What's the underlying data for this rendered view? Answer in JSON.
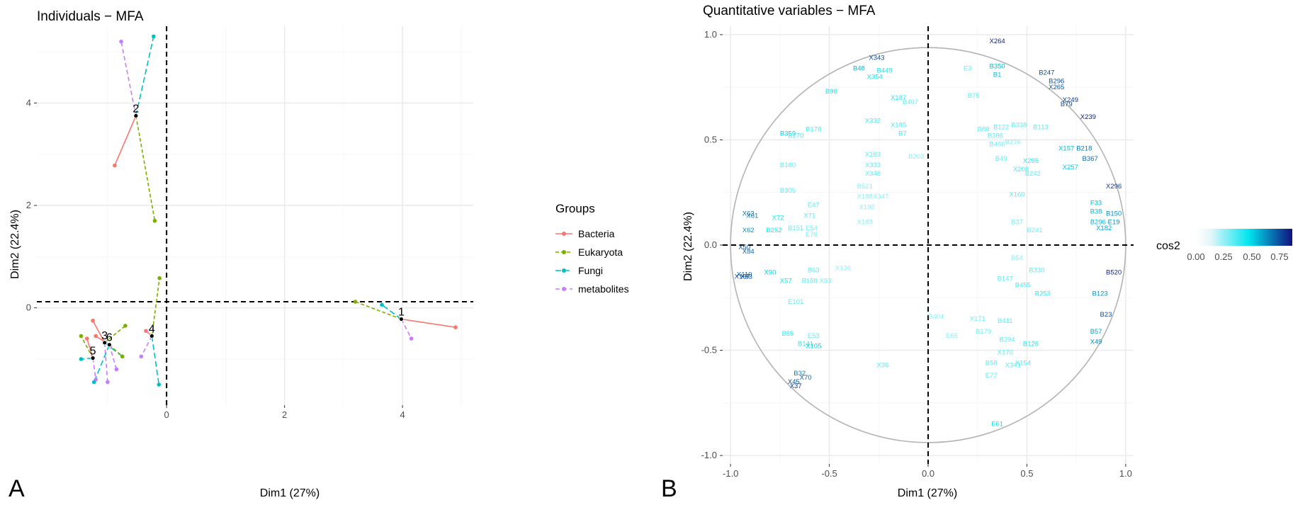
{
  "panel_a": {
    "letter": "A",
    "title": "Individuals − MFA",
    "xlabel": "Dim1 (27%)",
    "ylabel": "Dim2 (22.4%)",
    "legend_title": "Groups"
  },
  "panel_b": {
    "letter": "B",
    "title": "Quantitative variables − MFA",
    "xlabel": "Dim1 (27%)",
    "ylabel": "Dim2 (22.4%)",
    "colorbar_title": "cos2",
    "colorbar_ticks": [
      "0.00",
      "0.25",
      "0.50",
      "0.75"
    ]
  },
  "colors": {
    "Bacteria": "#f8766d",
    "Eukaryota": "#7cae00",
    "Fungi": "#00bfc4",
    "metabolites": "#c77cff",
    "cos2_low": "#e6f6fa",
    "cos2_mid": "#00e5ee",
    "cos2_high": "#10107f"
  },
  "chart_data": [
    {
      "type": "scatter",
      "subtype": "partial-individuals",
      "title": "Individuals − MFA",
      "xlabel": "Dim1 (27%)",
      "ylabel": "Dim2 (22.4%)",
      "xlim": [
        -2.2,
        5.2
      ],
      "ylim": [
        -1.9,
        5.5
      ],
      "xticks": [
        0,
        2,
        4
      ],
      "yticks": [
        0,
        2,
        4
      ],
      "grid": true,
      "legend_position": "right",
      "reference_lines": {
        "x": 0,
        "y": 0.12
      },
      "groups": [
        "Bacteria",
        "Eukaryota",
        "Fungi",
        "metabolites"
      ],
      "individuals": [
        {
          "label": "1",
          "x": 3.98,
          "y": -0.22,
          "partial": {
            "Bacteria": [
              4.9,
              -0.38
            ],
            "Eukaryota": [
              3.2,
              0.12
            ],
            "Fungi": [
              3.65,
              0.06
            ],
            "metabolites": [
              4.15,
              -0.6
            ]
          }
        },
        {
          "label": "2",
          "x": -0.52,
          "y": 3.75,
          "partial": {
            "Bacteria": [
              -0.88,
              2.78
            ],
            "Eukaryota": [
              -0.2,
              1.7
            ],
            "Fungi": [
              -0.22,
              5.3
            ],
            "metabolites": [
              -0.77,
              5.2
            ]
          }
        },
        {
          "label": "3",
          "x": -1.05,
          "y": -0.68,
          "partial": {
            "Bacteria": [
              -1.25,
              -0.25
            ],
            "Eukaryota": [
              -0.7,
              -0.35
            ],
            "Fungi": [
              -0.75,
              -0.95
            ],
            "metabolites": [
              -1.0,
              -1.45
            ]
          }
        },
        {
          "label": "4",
          "x": -0.25,
          "y": -0.55,
          "partial": {
            "Bacteria": [
              -0.35,
              -0.45
            ],
            "Eukaryota": [
              -0.12,
              0.58
            ],
            "Fungi": [
              -0.13,
              -1.5
            ],
            "metabolites": [
              -0.43,
              -0.95
            ]
          }
        },
        {
          "label": "5",
          "x": -1.25,
          "y": -0.98,
          "partial": {
            "Bacteria": [
              -1.35,
              -0.6
            ],
            "Eukaryota": [
              -1.45,
              -0.55
            ],
            "Fungi": [
              -1.45,
              -1.0
            ],
            "metabolites": [
              -1.2,
              -1.4
            ]
          }
        },
        {
          "label": "6",
          "x": -0.97,
          "y": -0.72,
          "partial": {
            "Bacteria": [
              -1.2,
              -0.55
            ],
            "Eukaryota": [
              -0.75,
              -0.95
            ],
            "Fungi": [
              -1.23,
              -1.45
            ],
            "metabolites": [
              -0.85,
              -1.2
            ]
          }
        }
      ]
    },
    {
      "type": "scatter",
      "subtype": "correlation-circle",
      "title": "Quantitative variables − MFA",
      "xlabel": "Dim1 (27%)",
      "ylabel": "Dim2 (22.4%)",
      "xlim": [
        -1.04,
        1.04
      ],
      "ylim": [
        -1.04,
        1.04
      ],
      "xticks": [
        -1.0,
        -0.5,
        0.0,
        0.5,
        1.0
      ],
      "yticks": [
        -1.0,
        -0.5,
        0.0,
        0.5,
        1.0
      ],
      "grid": true,
      "legend_position": "right",
      "color_by": "cos2",
      "colorbar_ticks": [
        0.0,
        0.25,
        0.5,
        0.75
      ],
      "variables": [
        {
          "label": "X264",
          "x": 0.35,
          "y": 0.97,
          "cos2": 0.95
        },
        {
          "label": "X343",
          "x": -0.26,
          "y": 0.89,
          "cos2": 0.85
        },
        {
          "label": "B350",
          "x": 0.35,
          "y": 0.85,
          "cos2": 0.6
        },
        {
          "label": "B1",
          "x": 0.35,
          "y": 0.81,
          "cos2": 0.6
        },
        {
          "label": "B48",
          "x": -0.35,
          "y": 0.84,
          "cos2": 0.6
        },
        {
          "label": "X354",
          "x": -0.27,
          "y": 0.8,
          "cos2": 0.45
        },
        {
          "label": "B449",
          "x": -0.22,
          "y": 0.83,
          "cos2": 0.45
        },
        {
          "label": "E3",
          "x": 0.2,
          "y": 0.84,
          "cos2": 0.3
        },
        {
          "label": "B247",
          "x": 0.6,
          "y": 0.82,
          "cos2": 0.85
        },
        {
          "label": "X265",
          "x": 0.65,
          "y": 0.75,
          "cos2": 0.85
        },
        {
          "label": "B296",
          "x": 0.65,
          "y": 0.78,
          "cos2": 0.85
        },
        {
          "label": "X249",
          "x": 0.72,
          "y": 0.69,
          "cos2": 0.9
        },
        {
          "label": "B79",
          "x": 0.7,
          "y": 0.67,
          "cos2": 0.85
        },
        {
          "label": "X239",
          "x": 0.81,
          "y": 0.61,
          "cos2": 0.95
        },
        {
          "label": "B75",
          "x": 0.23,
          "y": 0.71,
          "cos2": 0.3
        },
        {
          "label": "B96",
          "x": -0.49,
          "y": 0.73,
          "cos2": 0.45
        },
        {
          "label": "X187",
          "x": -0.15,
          "y": 0.7,
          "cos2": 0.4
        },
        {
          "label": "B407",
          "x": -0.09,
          "y": 0.68,
          "cos2": 0.3
        },
        {
          "label": "X332",
          "x": -0.28,
          "y": 0.59,
          "cos2": 0.35
        },
        {
          "label": "X185",
          "x": -0.15,
          "y": 0.57,
          "cos2": 0.35
        },
        {
          "label": "B7",
          "x": -0.13,
          "y": 0.53,
          "cos2": 0.35
        },
        {
          "label": "B359",
          "x": -0.71,
          "y": 0.53,
          "cos2": 0.55
        },
        {
          "label": "B178",
          "x": -0.58,
          "y": 0.55,
          "cos2": 0.35
        },
        {
          "label": "B170",
          "x": -0.67,
          "y": 0.52,
          "cos2": 0.35
        },
        {
          "label": "X183",
          "x": -0.28,
          "y": 0.43,
          "cos2": 0.3
        },
        {
          "label": "X333",
          "x": -0.28,
          "y": 0.38,
          "cos2": 0.3
        },
        {
          "label": "X348",
          "x": -0.28,
          "y": 0.34,
          "cos2": 0.3
        },
        {
          "label": "B160",
          "x": -0.71,
          "y": 0.38,
          "cos2": 0.3
        },
        {
          "label": "B203",
          "x": -0.06,
          "y": 0.42,
          "cos2": 0.2
        },
        {
          "label": "B88",
          "x": 0.28,
          "y": 0.55,
          "cos2": 0.3
        },
        {
          "label": "B122",
          "x": 0.37,
          "y": 0.56,
          "cos2": 0.3
        },
        {
          "label": "B338",
          "x": 0.46,
          "y": 0.57,
          "cos2": 0.3
        },
        {
          "label": "B113",
          "x": 0.57,
          "y": 0.56,
          "cos2": 0.3
        },
        {
          "label": "B396",
          "x": 0.34,
          "y": 0.52,
          "cos2": 0.3
        },
        {
          "label": "B466",
          "x": 0.35,
          "y": 0.48,
          "cos2": 0.25
        },
        {
          "label": "B276",
          "x": 0.43,
          "y": 0.49,
          "cos2": 0.25
        },
        {
          "label": "X157",
          "x": 0.7,
          "y": 0.46,
          "cos2": 0.6
        },
        {
          "label": "B218",
          "x": 0.79,
          "y": 0.46,
          "cos2": 0.75
        },
        {
          "label": "B367",
          "x": 0.82,
          "y": 0.41,
          "cos2": 0.8
        },
        {
          "label": "X295",
          "x": 0.52,
          "y": 0.4,
          "cos2": 0.4
        },
        {
          "label": "B49",
          "x": 0.37,
          "y": 0.41,
          "cos2": 0.3
        },
        {
          "label": "X208",
          "x": 0.47,
          "y": 0.36,
          "cos2": 0.35
        },
        {
          "label": "B242",
          "x": 0.53,
          "y": 0.34,
          "cos2": 0.3
        },
        {
          "label": "X257",
          "x": 0.72,
          "y": 0.37,
          "cos2": 0.55
        },
        {
          "label": "X296",
          "x": 0.94,
          "y": 0.28,
          "cos2": 0.9
        },
        {
          "label": "X160",
          "x": 0.45,
          "y": 0.24,
          "cos2": 0.3
        },
        {
          "label": "B305",
          "x": -0.71,
          "y": 0.26,
          "cos2": 0.3
        },
        {
          "label": "B521",
          "x": -0.32,
          "y": 0.28,
          "cos2": 0.2
        },
        {
          "label": "X188",
          "x": -0.32,
          "y": 0.23,
          "cos2": 0.2
        },
        {
          "label": "X347",
          "x": -0.24,
          "y": 0.23,
          "cos2": 0.2
        },
        {
          "label": "E47",
          "x": -0.58,
          "y": 0.19,
          "cos2": 0.3
        },
        {
          "label": "X192",
          "x": -0.31,
          "y": 0.18,
          "cos2": 0.2
        },
        {
          "label": "X71",
          "x": -0.6,
          "y": 0.14,
          "cos2": 0.3
        },
        {
          "label": "X72",
          "x": -0.76,
          "y": 0.13,
          "cos2": 0.45
        },
        {
          "label": "X63",
          "x": -0.91,
          "y": 0.15,
          "cos2": 0.75
        },
        {
          "label": "X61",
          "x": -0.89,
          "y": 0.14,
          "cos2": 0.75
        },
        {
          "label": "X189",
          "x": -0.32,
          "y": 0.11,
          "cos2": 0.2
        },
        {
          "label": "B151",
          "x": -0.67,
          "y": 0.08,
          "cos2": 0.3
        },
        {
          "label": "B252",
          "x": -0.78,
          "y": 0.07,
          "cos2": 0.45
        },
        {
          "label": "X62",
          "x": -0.91,
          "y": 0.07,
          "cos2": 0.7
        },
        {
          "label": "E54",
          "x": -0.59,
          "y": 0.08,
          "cos2": 0.25
        },
        {
          "label": "E76",
          "x": -0.59,
          "y": 0.05,
          "cos2": 0.25
        },
        {
          "label": "F33",
          "x": 0.85,
          "y": 0.2,
          "cos2": 0.6
        },
        {
          "label": "B38",
          "x": 0.85,
          "y": 0.16,
          "cos2": 0.6
        },
        {
          "label": "B150",
          "x": 0.94,
          "y": 0.15,
          "cos2": 0.7
        },
        {
          "label": "B296",
          "x": 0.86,
          "y": 0.11,
          "cos2": 0.6
        },
        {
          "label": "E19",
          "x": 0.94,
          "y": 0.11,
          "cos2": 0.7
        },
        {
          "label": "X182",
          "x": 0.89,
          "y": 0.08,
          "cos2": 0.65
        },
        {
          "label": "B37",
          "x": 0.45,
          "y": 0.11,
          "cos2": 0.25
        },
        {
          "label": "B241",
          "x": 0.54,
          "y": 0.07,
          "cos2": 0.25
        },
        {
          "label": "B54",
          "x": 0.45,
          "y": -0.06,
          "cos2": 0.2
        },
        {
          "label": "X84",
          "x": -0.91,
          "y": -0.03,
          "cos2": 0.8
        },
        {
          "label": "X50",
          "x": -0.93,
          "y": -0.01,
          "cos2": 0.85
        },
        {
          "label": "X110",
          "x": -0.93,
          "y": -0.14,
          "cos2": 0.8
        },
        {
          "label": "X167",
          "x": -0.94,
          "y": -0.15,
          "cos2": 0.85
        },
        {
          "label": "X93",
          "x": -0.92,
          "y": -0.15,
          "cos2": 0.85
        },
        {
          "label": "X90",
          "x": -0.8,
          "y": -0.13,
          "cos2": 0.55
        },
        {
          "label": "X57",
          "x": -0.72,
          "y": -0.17,
          "cos2": 0.45
        },
        {
          "label": "B63",
          "x": -0.58,
          "y": -0.12,
          "cos2": 0.3
        },
        {
          "label": "B158",
          "x": -0.6,
          "y": -0.17,
          "cos2": 0.3
        },
        {
          "label": "X93",
          "x": -0.52,
          "y": -0.17,
          "cos2": 0.25
        },
        {
          "label": "X136",
          "x": -0.43,
          "y": -0.11,
          "cos2": 0.2
        },
        {
          "label": "E101",
          "x": -0.67,
          "y": -0.27,
          "cos2": 0.3
        },
        {
          "label": "B85",
          "x": -0.71,
          "y": -0.42,
          "cos2": 0.4
        },
        {
          "label": "B141",
          "x": -0.62,
          "y": -0.47,
          "cos2": 0.4
        },
        {
          "label": "X105",
          "x": -0.58,
          "y": -0.48,
          "cos2": 0.55
        },
        {
          "label": "E53",
          "x": -0.58,
          "y": -0.43,
          "cos2": 0.3
        },
        {
          "label": "X36",
          "x": -0.23,
          "y": -0.57,
          "cos2": 0.3
        },
        {
          "label": "B32",
          "x": -0.65,
          "y": -0.61,
          "cos2": 0.75
        },
        {
          "label": "X70",
          "x": -0.62,
          "y": -0.63,
          "cos2": 0.8
        },
        {
          "label": "X45",
          "x": -0.68,
          "y": -0.65,
          "cos2": 0.85
        },
        {
          "label": "X37",
          "x": -0.67,
          "y": -0.67,
          "cos2": 0.9
        },
        {
          "label": "B404",
          "x": 0.04,
          "y": -0.34,
          "cos2": 0.2
        },
        {
          "label": "X171",
          "x": 0.25,
          "y": -0.35,
          "cos2": 0.25
        },
        {
          "label": "E65",
          "x": 0.12,
          "y": -0.43,
          "cos2": 0.2
        },
        {
          "label": "B179",
          "x": 0.28,
          "y": -0.41,
          "cos2": 0.25
        },
        {
          "label": "B294",
          "x": 0.4,
          "y": -0.45,
          "cos2": 0.3
        },
        {
          "label": "B126",
          "x": 0.52,
          "y": -0.47,
          "cos2": 0.45
        },
        {
          "label": "B57",
          "x": 0.85,
          "y": -0.41,
          "cos2": 0.65
        },
        {
          "label": "X49",
          "x": 0.85,
          "y": -0.46,
          "cos2": 0.7
        },
        {
          "label": "B23",
          "x": 0.9,
          "y": -0.33,
          "cos2": 0.85
        },
        {
          "label": "B123",
          "x": 0.87,
          "y": -0.23,
          "cos2": 0.7
        },
        {
          "label": "B520",
          "x": 0.94,
          "y": -0.13,
          "cos2": 0.95
        },
        {
          "label": "B330",
          "x": 0.55,
          "y": -0.12,
          "cos2": 0.3
        },
        {
          "label": "B147",
          "x": 0.39,
          "y": -0.16,
          "cos2": 0.3
        },
        {
          "label": "B455",
          "x": 0.48,
          "y": -0.19,
          "cos2": 0.35
        },
        {
          "label": "B253",
          "x": 0.58,
          "y": -0.23,
          "cos2": 0.4
        },
        {
          "label": "B411",
          "x": 0.39,
          "y": -0.36,
          "cos2": 0.3
        },
        {
          "label": "B58",
          "x": 0.32,
          "y": -0.56,
          "cos2": 0.3
        },
        {
          "label": "X170",
          "x": 0.39,
          "y": -0.51,
          "cos2": 0.3
        },
        {
          "label": "X154",
          "x": 0.48,
          "y": -0.56,
          "cos2": 0.35
        },
        {
          "label": "E77",
          "x": 0.32,
          "y": -0.62,
          "cos2": 0.3
        },
        {
          "label": "X341",
          "x": 0.43,
          "y": -0.57,
          "cos2": 0.3
        },
        {
          "label": "E61",
          "x": 0.35,
          "y": -0.85,
          "cos2": 0.5
        }
      ]
    }
  ]
}
